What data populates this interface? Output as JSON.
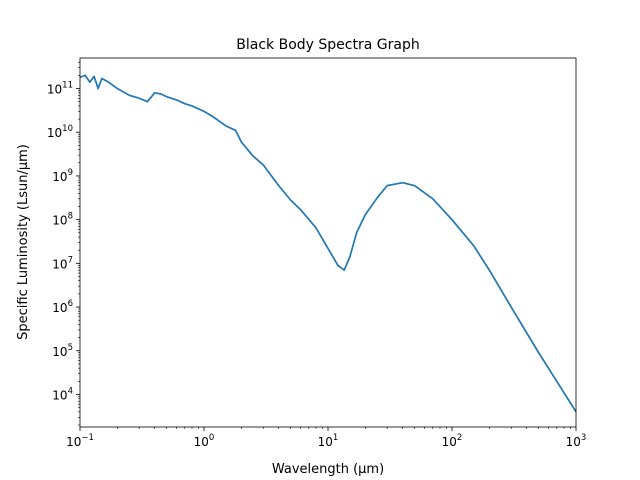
{
  "chart_data": {
    "type": "line",
    "title": "Black Body Spectra Graph",
    "xlabel": "Wavelength (μm)",
    "ylabel": "Specific Luminosity (Lsun/μm)",
    "xscale": "log",
    "yscale": "log",
    "xlim": [
      0.1,
      1000
    ],
    "ylim": [
      1800,
      500000000000
    ],
    "grid": false,
    "x_ticks": [
      {
        "value": 0.1,
        "base": "10",
        "exp": "−1"
      },
      {
        "value": 1,
        "base": "10",
        "exp": "0"
      },
      {
        "value": 10,
        "base": "10",
        "exp": "1"
      },
      {
        "value": 100,
        "base": "10",
        "exp": "2"
      },
      {
        "value": 1000,
        "base": "10",
        "exp": "3"
      }
    ],
    "y_ticks": [
      {
        "value": 10000,
        "base": "10",
        "exp": "4"
      },
      {
        "value": 100000,
        "base": "10",
        "exp": "5"
      },
      {
        "value": 1000000,
        "base": "10",
        "exp": "6"
      },
      {
        "value": 10000000,
        "base": "10",
        "exp": "7"
      },
      {
        "value": 100000000,
        "base": "10",
        "exp": "8"
      },
      {
        "value": 1000000000,
        "base": "10",
        "exp": "9"
      },
      {
        "value": 10000000000,
        "base": "10",
        "exp": "10"
      },
      {
        "value": 100000000000,
        "base": "10",
        "exp": "11"
      }
    ],
    "series": [
      {
        "color": "#1f77b4",
        "x": [
          0.1,
          0.11,
          0.12,
          0.13,
          0.14,
          0.15,
          0.17,
          0.2,
          0.25,
          0.3,
          0.35,
          0.4,
          0.45,
          0.5,
          0.6,
          0.7,
          0.8,
          1.0,
          1.2,
          1.5,
          1.8,
          2.0,
          2.5,
          3.0,
          4.0,
          5.0,
          6.0,
          8.0,
          10,
          12,
          13.5,
          15,
          17,
          20,
          25,
          30,
          40,
          50,
          70,
          100,
          150,
          200,
          300,
          500,
          700,
          1000
        ],
        "y": [
          180000000000,
          200000000000,
          140000000000,
          190000000000,
          100000000000,
          170000000000,
          140000000000,
          100000000000,
          70000000000,
          60000000000,
          50000000000,
          80000000000,
          75000000000,
          65000000000,
          55000000000,
          45000000000,
          40000000000,
          30000000000,
          22000000000,
          14000000000,
          11000000000,
          6000000000,
          2800000000,
          1800000000,
          600000000,
          280000000,
          170000000,
          65000000,
          22000000,
          9000000,
          7000000,
          14000000,
          50000000,
          130000000,
          320000000,
          600000000,
          700000000,
          600000000,
          300000000,
          100000000,
          25000000,
          7000000,
          1000000,
          90000,
          20000,
          4000
        ]
      }
    ]
  }
}
